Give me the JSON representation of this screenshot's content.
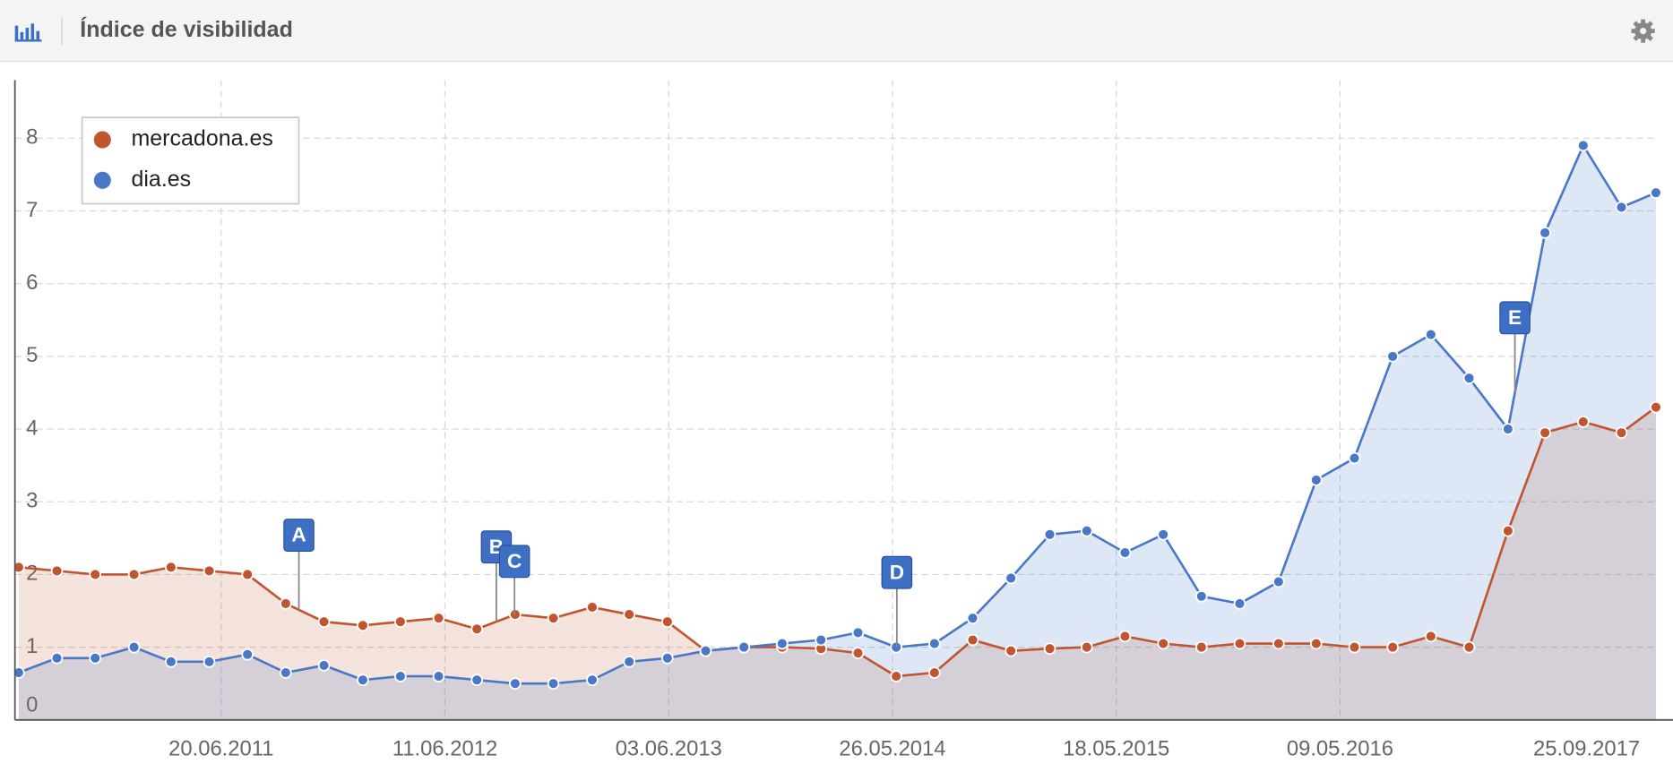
{
  "header": {
    "title": "Índice de visibilidad"
  },
  "chart_data": {
    "type": "line",
    "x": [
      "01.08.2010",
      "01.10.2010",
      "01.12.2010",
      "01.02.2011",
      "01.04.2011",
      "01.06.2011",
      "01.08.2011",
      "01.10.2011",
      "01.12.2011",
      "01.02.2012",
      "01.04.2012",
      "01.06.2012",
      "01.08.2012",
      "01.10.2012",
      "01.12.2012",
      "01.02.2013",
      "01.04.2013",
      "01.06.2013",
      "01.08.2013",
      "01.10.2013",
      "01.12.2013",
      "01.02.2014",
      "01.04.2014",
      "01.06.2014",
      "01.08.2014",
      "01.10.2014",
      "01.12.2014",
      "01.02.2015",
      "01.04.2015",
      "01.06.2015",
      "01.08.2015",
      "01.10.2015",
      "01.12.2015",
      "01.02.2016",
      "01.04.2016",
      "01.06.2016",
      "01.08.2016",
      "01.10.2016",
      "01.12.2016",
      "01.02.2017",
      "01.04.2017",
      "01.06.2017",
      "01.08.2017",
      "25.09.2017"
    ],
    "series": [
      {
        "name": "mercadona.es",
        "color": "#c0552f",
        "values": [
          2.1,
          2.05,
          2.0,
          2.0,
          2.1,
          2.05,
          2.0,
          1.6,
          1.35,
          1.3,
          1.35,
          1.4,
          1.25,
          1.45,
          1.4,
          1.55,
          1.45,
          1.35,
          0.95,
          1.0,
          1.0,
          0.98,
          0.92,
          0.6,
          0.65,
          1.1,
          0.95,
          0.98,
          1.0,
          1.15,
          1.05,
          1.0,
          1.05,
          1.05,
          1.05,
          1.0,
          1.0,
          1.15,
          1.0,
          2.6,
          3.95,
          4.1,
          3.95,
          4.3
        ]
      },
      {
        "name": "dia.es",
        "color": "#4a78c8",
        "values": [
          0.65,
          0.85,
          0.85,
          1.0,
          0.8,
          0.8,
          0.9,
          0.65,
          0.75,
          0.55,
          0.6,
          0.6,
          0.55,
          0.5,
          0.5,
          0.55,
          0.8,
          0.85,
          0.95,
          1.0,
          1.05,
          1.1,
          1.2,
          1.0,
          1.05,
          1.4,
          1.95,
          2.55,
          2.6,
          2.3,
          2.55,
          1.7,
          1.6,
          1.9,
          3.3,
          3.6,
          5.0,
          5.3,
          4.7,
          4.0,
          6.7,
          7.9,
          7.05,
          7.25
        ]
      }
    ],
    "xlim": [
      "26.07.2010",
      "25.09.2017"
    ],
    "xticks": [
      "20.06.2011",
      "11.06.2012",
      "03.06.2013",
      "26.05.2014",
      "18.05.2015",
      "09.05.2016",
      "25.09.2017"
    ],
    "ylim": [
      0,
      8.8
    ],
    "yticks": [
      0,
      1,
      2,
      3,
      4,
      5,
      6,
      7,
      8
    ],
    "grid": true,
    "legend": "top-left",
    "annotations": [
      {
        "label": "A",
        "x": "22.10.2011"
      },
      {
        "label": "B",
        "x": "01.09.2012"
      },
      {
        "label": "C",
        "x": "30.09.2012"
      },
      {
        "label": "D",
        "x": "02.06.2014"
      },
      {
        "label": "E",
        "x": "12.02.2017"
      }
    ]
  }
}
